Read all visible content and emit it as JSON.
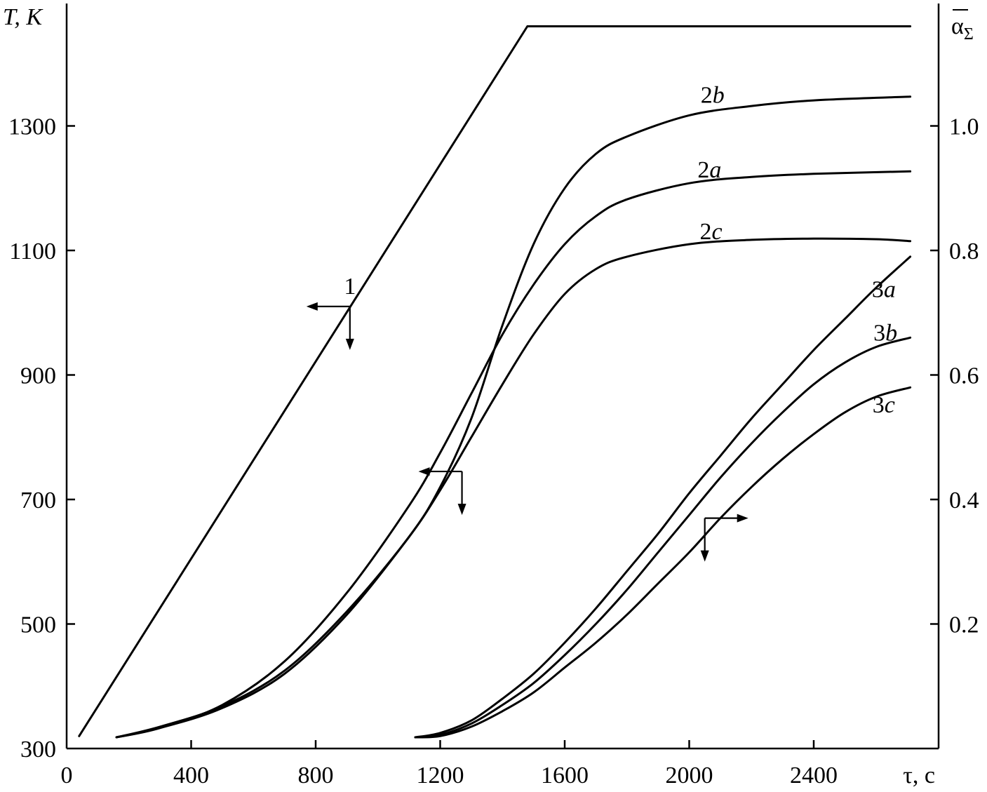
{
  "chart_data": {
    "type": "line",
    "xlabel": "τ, c",
    "ylabel_left": "T, K",
    "ylabel_right": "α̅Σ",
    "ylabel_right_base": "α",
    "ylabel_right_sub": "Σ",
    "xlim": [
      0,
      2800
    ],
    "ylim_left": [
      300,
      1460
    ],
    "ylim_right": [
      0,
      1.16
    ],
    "x_ticks": [
      {
        "value": 0,
        "label": "0"
      },
      {
        "value": 400,
        "label": "400"
      },
      {
        "value": 800,
        "label": "800"
      },
      {
        "value": 1200,
        "label": "1200"
      },
      {
        "value": 1600,
        "label": "1600"
      },
      {
        "value": 2000,
        "label": "2000"
      },
      {
        "value": 2400,
        "label": "2400"
      }
    ],
    "y_left_ticks": [
      {
        "value": 300,
        "label": "300"
      },
      {
        "value": 500,
        "label": "500"
      },
      {
        "value": 700,
        "label": "700"
      },
      {
        "value": 900,
        "label": "900"
      },
      {
        "value": 1100,
        "label": "1100"
      },
      {
        "value": 1300,
        "label": "1300"
      }
    ],
    "y_right_ticks": [
      {
        "value": 0.2,
        "label": "0.2"
      },
      {
        "value": 0.4,
        "label": "0.4"
      },
      {
        "value": 0.6,
        "label": "0.6"
      },
      {
        "value": 0.8,
        "label": "0.8"
      },
      {
        "value": 1.0,
        "label": "1.0"
      }
    ],
    "grid": false,
    "series": [
      {
        "name": "1",
        "label_main": "1",
        "label_sub": "",
        "axis": "left",
        "points": [
          [
            40,
            320
          ],
          [
            1480,
            1460
          ],
          [
            2710,
            1460
          ]
        ],
        "label_at": [
          910,
          1030
        ]
      },
      {
        "name": "2b",
        "label_main": "2",
        "label_sub": "b",
        "axis": "left",
        "points": [
          [
            160,
            318
          ],
          [
            300,
            335
          ],
          [
            500,
            368
          ],
          [
            700,
            425
          ],
          [
            900,
            520
          ],
          [
            1100,
            640
          ],
          [
            1200,
            720
          ],
          [
            1300,
            830
          ],
          [
            1400,
            980
          ],
          [
            1500,
            1110
          ],
          [
            1600,
            1200
          ],
          [
            1700,
            1255
          ],
          [
            1800,
            1283
          ],
          [
            2000,
            1317
          ],
          [
            2200,
            1332
          ],
          [
            2400,
            1341
          ],
          [
            2710,
            1347
          ]
        ],
        "label_at": [
          2075,
          1337
        ]
      },
      {
        "name": "2a",
        "label_main": "2",
        "label_sub": "a",
        "axis": "left",
        "points": [
          [
            160,
            318
          ],
          [
            300,
            333
          ],
          [
            500,
            370
          ],
          [
            700,
            440
          ],
          [
            900,
            550
          ],
          [
            1100,
            690
          ],
          [
            1200,
            775
          ],
          [
            1300,
            870
          ],
          [
            1400,
            965
          ],
          [
            1500,
            1045
          ],
          [
            1600,
            1110
          ],
          [
            1700,
            1155
          ],
          [
            1800,
            1182
          ],
          [
            2000,
            1208
          ],
          [
            2200,
            1218
          ],
          [
            2400,
            1223
          ],
          [
            2710,
            1227
          ]
        ],
        "label_at": [
          2065,
          1217
        ]
      },
      {
        "name": "2c",
        "label_main": "2",
        "label_sub": "c",
        "axis": "left",
        "points": [
          [
            160,
            318
          ],
          [
            300,
            333
          ],
          [
            500,
            365
          ],
          [
            700,
            420
          ],
          [
            900,
            515
          ],
          [
            1100,
            640
          ],
          [
            1200,
            715
          ],
          [
            1300,
            800
          ],
          [
            1400,
            885
          ],
          [
            1500,
            965
          ],
          [
            1600,
            1030
          ],
          [
            1700,
            1070
          ],
          [
            1800,
            1090
          ],
          [
            2000,
            1110
          ],
          [
            2200,
            1117
          ],
          [
            2400,
            1119
          ],
          [
            2600,
            1118
          ],
          [
            2710,
            1115
          ]
        ],
        "label_at": [
          2070,
          1118
        ]
      },
      {
        "name": "3a",
        "label_main": "3",
        "label_sub": "a",
        "axis": "right",
        "points": [
          [
            1120,
            0.018
          ],
          [
            1200,
            0.025
          ],
          [
            1300,
            0.045
          ],
          [
            1400,
            0.08
          ],
          [
            1500,
            0.12
          ],
          [
            1600,
            0.17
          ],
          [
            1700,
            0.225
          ],
          [
            1800,
            0.285
          ],
          [
            1900,
            0.345
          ],
          [
            2000,
            0.41
          ],
          [
            2100,
            0.47
          ],
          [
            2200,
            0.53
          ],
          [
            2300,
            0.585
          ],
          [
            2400,
            0.64
          ],
          [
            2500,
            0.69
          ],
          [
            2600,
            0.74
          ],
          [
            2710,
            0.79
          ]
        ],
        "label_at": [
          2625,
          0.725
        ]
      },
      {
        "name": "3b",
        "label_main": "3",
        "label_sub": "b",
        "axis": "right",
        "points": [
          [
            1120,
            0.018
          ],
          [
            1200,
            0.022
          ],
          [
            1300,
            0.04
          ],
          [
            1400,
            0.07
          ],
          [
            1500,
            0.105
          ],
          [
            1600,
            0.15
          ],
          [
            1700,
            0.2
          ],
          [
            1800,
            0.255
          ],
          [
            1900,
            0.315
          ],
          [
            2000,
            0.375
          ],
          [
            2100,
            0.435
          ],
          [
            2200,
            0.49
          ],
          [
            2300,
            0.54
          ],
          [
            2400,
            0.585
          ],
          [
            2500,
            0.62
          ],
          [
            2600,
            0.645
          ],
          [
            2710,
            0.66
          ]
        ],
        "label_at": [
          2630,
          0.655
        ]
      },
      {
        "name": "3c",
        "label_main": "3",
        "label_sub": "c",
        "axis": "right",
        "points": [
          [
            1120,
            0.018
          ],
          [
            1200,
            0.02
          ],
          [
            1300,
            0.035
          ],
          [
            1400,
            0.06
          ],
          [
            1500,
            0.09
          ],
          [
            1600,
            0.13
          ],
          [
            1700,
            0.17
          ],
          [
            1800,
            0.215
          ],
          [
            1900,
            0.265
          ],
          [
            2000,
            0.315
          ],
          [
            2100,
            0.37
          ],
          [
            2200,
            0.42
          ],
          [
            2300,
            0.465
          ],
          [
            2400,
            0.505
          ],
          [
            2500,
            0.54
          ],
          [
            2600,
            0.565
          ],
          [
            2710,
            0.58
          ]
        ],
        "label_at": [
          2625,
          0.54
        ]
      }
    ],
    "axis_indicators": [
      {
        "name": "indicator-curve-1",
        "anchor": [
          910,
          1010
        ],
        "horizontal": "left",
        "vertical": "down"
      },
      {
        "name": "indicator-curves-2",
        "anchor": [
          1270,
          745
        ],
        "horizontal": "left",
        "vertical": "down"
      },
      {
        "name": "indicator-curves-3",
        "anchor": [
          2050,
          0.37
        ],
        "horizontal": "right",
        "vertical": "down"
      }
    ]
  }
}
